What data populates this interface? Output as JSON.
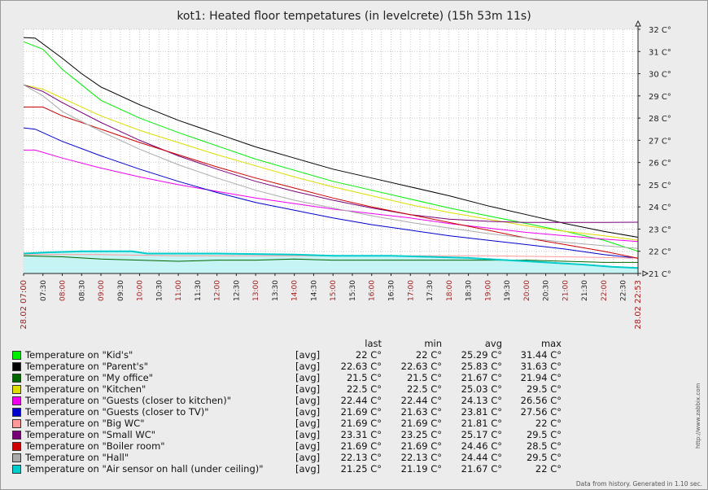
{
  "chart_data": {
    "type": "line",
    "title": "kot1: Heated floor tempetatures (in levelcrete) (15h 53m 11s)",
    "ylim": [
      21,
      32
    ],
    "y_ticks": [
      "32 C°",
      "31 C°",
      "30 C°",
      "29 C°",
      "28 C°",
      "27 C°",
      "26 C°",
      "25 C°",
      "24 C°",
      "23 C°",
      "22 C°",
      "21 C°"
    ],
    "x_ticks": [
      "28.02 07:00",
      "07:30",
      "08:00",
      "08:30",
      "09:00",
      "09:30",
      "10:00",
      "10:30",
      "11:00",
      "11:30",
      "12:00",
      "12:30",
      "13:00",
      "13:30",
      "14:00",
      "14:30",
      "15:00",
      "15:30",
      "16:00",
      "16:30",
      "17:00",
      "17:30",
      "18:00",
      "18:30",
      "19:00",
      "19:30",
      "20:00",
      "20:30",
      "21:00",
      "21:30",
      "22:00",
      "22:30",
      "28.02 22:53"
    ],
    "x_unit": "hours since 28.02 07:00",
    "grid": true,
    "series": [
      {
        "name": "Temperature on \"Kid's\"",
        "color": "#00ee00",
        "points": [
          [
            0,
            31.44
          ],
          [
            0.5,
            31.1
          ],
          [
            1,
            30.2
          ],
          [
            1.5,
            29.5
          ],
          [
            2,
            28.8
          ],
          [
            3,
            28
          ],
          [
            4,
            27.35
          ],
          [
            5,
            26.75
          ],
          [
            6,
            26.15
          ],
          [
            7,
            25.65
          ],
          [
            8,
            25.15
          ],
          [
            9,
            24.75
          ],
          [
            10,
            24.35
          ],
          [
            11,
            23.95
          ],
          [
            12,
            23.6
          ],
          [
            13,
            23.25
          ],
          [
            14,
            22.9
          ],
          [
            15,
            22.5
          ],
          [
            15.886,
            22
          ]
        ]
      },
      {
        "name": "Temperature on \"Parent's\"",
        "color": "#000000",
        "points": [
          [
            0,
            31.63
          ],
          [
            0.3,
            31.6
          ],
          [
            1,
            30.7
          ],
          [
            1.5,
            30
          ],
          [
            2,
            29.4
          ],
          [
            3,
            28.6
          ],
          [
            4,
            27.9
          ],
          [
            5,
            27.3
          ],
          [
            6,
            26.7
          ],
          [
            7,
            26.2
          ],
          [
            8,
            25.7
          ],
          [
            9,
            25.3
          ],
          [
            10,
            24.9
          ],
          [
            11,
            24.5
          ],
          [
            12,
            24.05
          ],
          [
            13,
            23.65
          ],
          [
            14,
            23.25
          ],
          [
            15,
            22.9
          ],
          [
            15.886,
            22.63
          ]
        ]
      },
      {
        "name": "Temperature on \"My office\"",
        "color": "#006600",
        "points": [
          [
            0,
            21.8
          ],
          [
            1,
            21.75
          ],
          [
            2,
            21.65
          ],
          [
            3,
            21.6
          ],
          [
            4,
            21.55
          ],
          [
            5,
            21.6
          ],
          [
            6,
            21.6
          ],
          [
            7,
            21.65
          ],
          [
            8,
            21.6
          ],
          [
            9,
            21.6
          ],
          [
            10,
            21.6
          ],
          [
            11,
            21.6
          ],
          [
            12,
            21.6
          ],
          [
            13,
            21.6
          ],
          [
            14,
            21.55
          ],
          [
            15,
            21.5
          ],
          [
            15.886,
            21.5
          ]
        ]
      },
      {
        "name": "Temperature on \"Kitchen\"",
        "color": "#dddd00",
        "points": [
          [
            0,
            29.5
          ],
          [
            0.5,
            29.3
          ],
          [
            1,
            28.9
          ],
          [
            2,
            28.1
          ],
          [
            3,
            27.45
          ],
          [
            4,
            26.9
          ],
          [
            5,
            26.35
          ],
          [
            6,
            25.85
          ],
          [
            7,
            25.35
          ],
          [
            8,
            24.9
          ],
          [
            9,
            24.5
          ],
          [
            10,
            24.1
          ],
          [
            11,
            23.75
          ],
          [
            12,
            23.45
          ],
          [
            13,
            23.15
          ],
          [
            14,
            22.9
          ],
          [
            15,
            22.7
          ],
          [
            15.886,
            22.5
          ]
        ]
      },
      {
        "name": "Temperature on \"Guests (closer to kitchen)\"",
        "color": "#ee00ee",
        "points": [
          [
            0,
            26.56
          ],
          [
            0.3,
            26.56
          ],
          [
            1,
            26.2
          ],
          [
            2,
            25.75
          ],
          [
            3,
            25.35
          ],
          [
            4,
            25
          ],
          [
            5,
            24.7
          ],
          [
            6,
            24.4
          ],
          [
            7,
            24.15
          ],
          [
            8,
            23.9
          ],
          [
            9,
            23.7
          ],
          [
            10,
            23.5
          ],
          [
            11,
            23.25
          ],
          [
            12,
            23.05
          ],
          [
            13,
            22.85
          ],
          [
            14,
            22.7
          ],
          [
            15,
            22.55
          ],
          [
            15.886,
            22.44
          ]
        ]
      },
      {
        "name": "Temperature on \"Guests (closer to TV)\"",
        "color": "#0000cc",
        "points": [
          [
            0,
            27.56
          ],
          [
            0.3,
            27.5
          ],
          [
            1,
            26.95
          ],
          [
            2,
            26.3
          ],
          [
            3,
            25.7
          ],
          [
            4,
            25.15
          ],
          [
            5,
            24.65
          ],
          [
            6,
            24.2
          ],
          [
            7,
            23.85
          ],
          [
            8,
            23.5
          ],
          [
            9,
            23.2
          ],
          [
            10,
            22.95
          ],
          [
            11,
            22.7
          ],
          [
            12,
            22.5
          ],
          [
            13,
            22.3
          ],
          [
            14,
            22.1
          ],
          [
            15,
            21.85
          ],
          [
            15.886,
            21.69
          ]
        ]
      },
      {
        "name": "Temperature on \"Big WC\"",
        "color": "#ff9999",
        "points": [
          [
            0,
            21.85
          ],
          [
            2,
            21.85
          ],
          [
            4,
            21.8
          ],
          [
            6,
            21.8
          ],
          [
            8,
            21.8
          ],
          [
            10,
            21.8
          ],
          [
            12,
            21.8
          ],
          [
            14,
            21.75
          ],
          [
            15.886,
            21.69
          ]
        ]
      },
      {
        "name": "Temperature on \"Small WC\"",
        "color": "#770077",
        "points": [
          [
            0,
            29.5
          ],
          [
            0.5,
            29.2
          ],
          [
            1,
            28.7
          ],
          [
            2,
            27.8
          ],
          [
            3,
            27
          ],
          [
            4,
            26.3
          ],
          [
            5,
            25.7
          ],
          [
            6,
            25.15
          ],
          [
            7,
            24.7
          ],
          [
            8,
            24.3
          ],
          [
            9,
            23.95
          ],
          [
            10,
            23.65
          ],
          [
            11,
            23.45
          ],
          [
            12,
            23.35
          ],
          [
            13,
            23.3
          ],
          [
            14,
            23.3
          ],
          [
            15,
            23.3
          ],
          [
            15.886,
            23.31
          ]
        ]
      },
      {
        "name": "Temperature on \"Boiler room\"",
        "color": "#cc0000",
        "points": [
          [
            0,
            28.5
          ],
          [
            0.5,
            28.5
          ],
          [
            1,
            28.1
          ],
          [
            2,
            27.5
          ],
          [
            3,
            26.9
          ],
          [
            4,
            26.35
          ],
          [
            5,
            25.8
          ],
          [
            6,
            25.3
          ],
          [
            7,
            24.85
          ],
          [
            8,
            24.4
          ],
          [
            9,
            24
          ],
          [
            10,
            23.65
          ],
          [
            11,
            23.3
          ],
          [
            12,
            22.95
          ],
          [
            13,
            22.6
          ],
          [
            14,
            22.3
          ],
          [
            15,
            22
          ],
          [
            15.886,
            21.69
          ]
        ]
      },
      {
        "name": "Temperature on \"Hall\"",
        "color": "#aaaaaa",
        "points": [
          [
            0,
            29.5
          ],
          [
            0.5,
            29
          ],
          [
            1,
            28.3
          ],
          [
            2,
            27.4
          ],
          [
            3,
            26.6
          ],
          [
            4,
            25.9
          ],
          [
            5,
            25.3
          ],
          [
            6,
            24.75
          ],
          [
            7,
            24.3
          ],
          [
            8,
            23.95
          ],
          [
            9,
            23.6
          ],
          [
            10,
            23.3
          ],
          [
            11,
            23.05
          ],
          [
            12,
            22.8
          ],
          [
            13,
            22.6
          ],
          [
            14,
            22.4
          ],
          [
            15,
            22.25
          ],
          [
            15.886,
            22.13
          ]
        ]
      },
      {
        "name": "Temperature on \"Air sensor on hall (under ceiling)\"",
        "color": "#00cccc",
        "points": [
          [
            0,
            21.9
          ],
          [
            0.6,
            21.95
          ],
          [
            1.5,
            22
          ],
          [
            2.8,
            22
          ],
          [
            3.2,
            21.9
          ],
          [
            5,
            21.9
          ],
          [
            7,
            21.85
          ],
          [
            8,
            21.8
          ],
          [
            9.5,
            21.8
          ],
          [
            10.5,
            21.75
          ],
          [
            11.5,
            21.7
          ],
          [
            12.5,
            21.6
          ],
          [
            13.5,
            21.5
          ],
          [
            14.5,
            21.4
          ],
          [
            15.2,
            21.3
          ],
          [
            15.886,
            21.25
          ]
        ]
      }
    ]
  },
  "legend": {
    "headers": {
      "last": "last",
      "min": "min",
      "avg": "avg",
      "max": "max"
    },
    "rows": [
      {
        "name": "Temperature on \"Kid's\"",
        "func": "[avg]",
        "last": "22 C°",
        "min": "22 C°",
        "avg": "25.29 C°",
        "max": "31.44 C°"
      },
      {
        "name": "Temperature on \"Parent's\"",
        "func": "[avg]",
        "last": "22.63 C°",
        "min": "22.63 C°",
        "avg": "25.83 C°",
        "max": "31.63 C°"
      },
      {
        "name": "Temperature on \"My office\"",
        "func": "[avg]",
        "last": "21.5 C°",
        "min": "21.5 C°",
        "avg": "21.67 C°",
        "max": "21.94 C°"
      },
      {
        "name": "Temperature on \"Kitchen\"",
        "func": "[avg]",
        "last": "22.5 C°",
        "min": "22.5 C°",
        "avg": "25.03 C°",
        "max": "29.5 C°"
      },
      {
        "name": "Temperature on \"Guests (closer to kitchen)\"",
        "func": "[avg]",
        "last": "22.44 C°",
        "min": "22.44 C°",
        "avg": "24.13 C°",
        "max": "26.56 C°"
      },
      {
        "name": "Temperature on \"Guests (closer to TV)\"",
        "func": "[avg]",
        "last": "21.69 C°",
        "min": "21.63 C°",
        "avg": "23.81 C°",
        "max": "27.56 C°"
      },
      {
        "name": "Temperature on \"Big WC\"",
        "func": "[avg]",
        "last": "21.69 C°",
        "min": "21.69 C°",
        "avg": "21.81 C°",
        "max": "22 C°"
      },
      {
        "name": "Temperature on \"Small WC\"",
        "func": "[avg]",
        "last": "23.31 C°",
        "min": "23.25 C°",
        "avg": "25.17 C°",
        "max": "29.5 C°"
      },
      {
        "name": "Temperature on \"Boiler room\"",
        "func": "[avg]",
        "last": "21.69 C°",
        "min": "21.69 C°",
        "avg": "24.46 C°",
        "max": "28.5 C°"
      },
      {
        "name": "Temperature on \"Hall\"",
        "func": "[avg]",
        "last": "22.13 C°",
        "min": "22.13 C°",
        "avg": "24.44 C°",
        "max": "29.5 C°"
      },
      {
        "name": "Temperature on \"Air sensor on hall (under ceiling)\"",
        "func": "[avg]",
        "last": "21.25 C°",
        "min": "21.19 C°",
        "avg": "21.67 C°",
        "max": "22 C°"
      }
    ]
  },
  "side_text": "http://www.zabbix.com",
  "footer": "Data from history. Generated in 1.10 sec."
}
